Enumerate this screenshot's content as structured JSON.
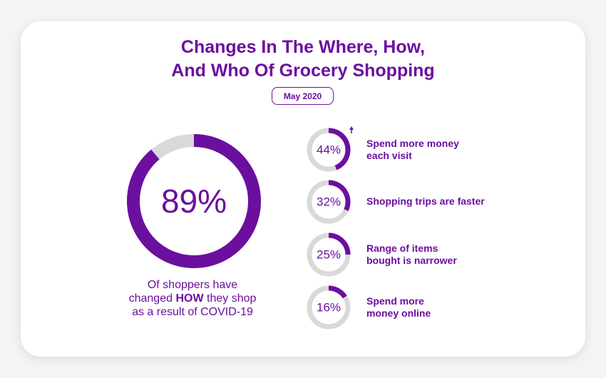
{
  "title": {
    "line1": "Changes In The Where, How,",
    "line2": "And Who Of Grocery Shopping"
  },
  "date_badge": "May 2020",
  "colors": {
    "accent": "#6b0f9f",
    "track": "#d9d9d9",
    "card": "#ffffff",
    "background": "#f4f4f5"
  },
  "chart_data": {
    "type": "donut",
    "main": {
      "value": 89,
      "value_label": "89%",
      "caption_line1": "Of shoppers have",
      "caption_line2_pre": "changed ",
      "caption_line2_bold": "HOW",
      "caption_line2_post": " they shop",
      "caption_line3": "as a result of COVID-19"
    },
    "items": [
      {
        "value": 44,
        "value_label": "44%",
        "label_lines": [
          "Spend more money",
          "each visit"
        ],
        "arrow": "up"
      },
      {
        "value": 32,
        "value_label": "32%",
        "label_lines": [
          "Shopping trips are faster"
        ]
      },
      {
        "value": 25,
        "value_label": "25%",
        "label_lines": [
          "Range of items",
          "bought is narrower"
        ]
      },
      {
        "value": 16,
        "value_label": "16%",
        "label_lines": [
          "Spend more",
          "money online"
        ]
      }
    ]
  }
}
